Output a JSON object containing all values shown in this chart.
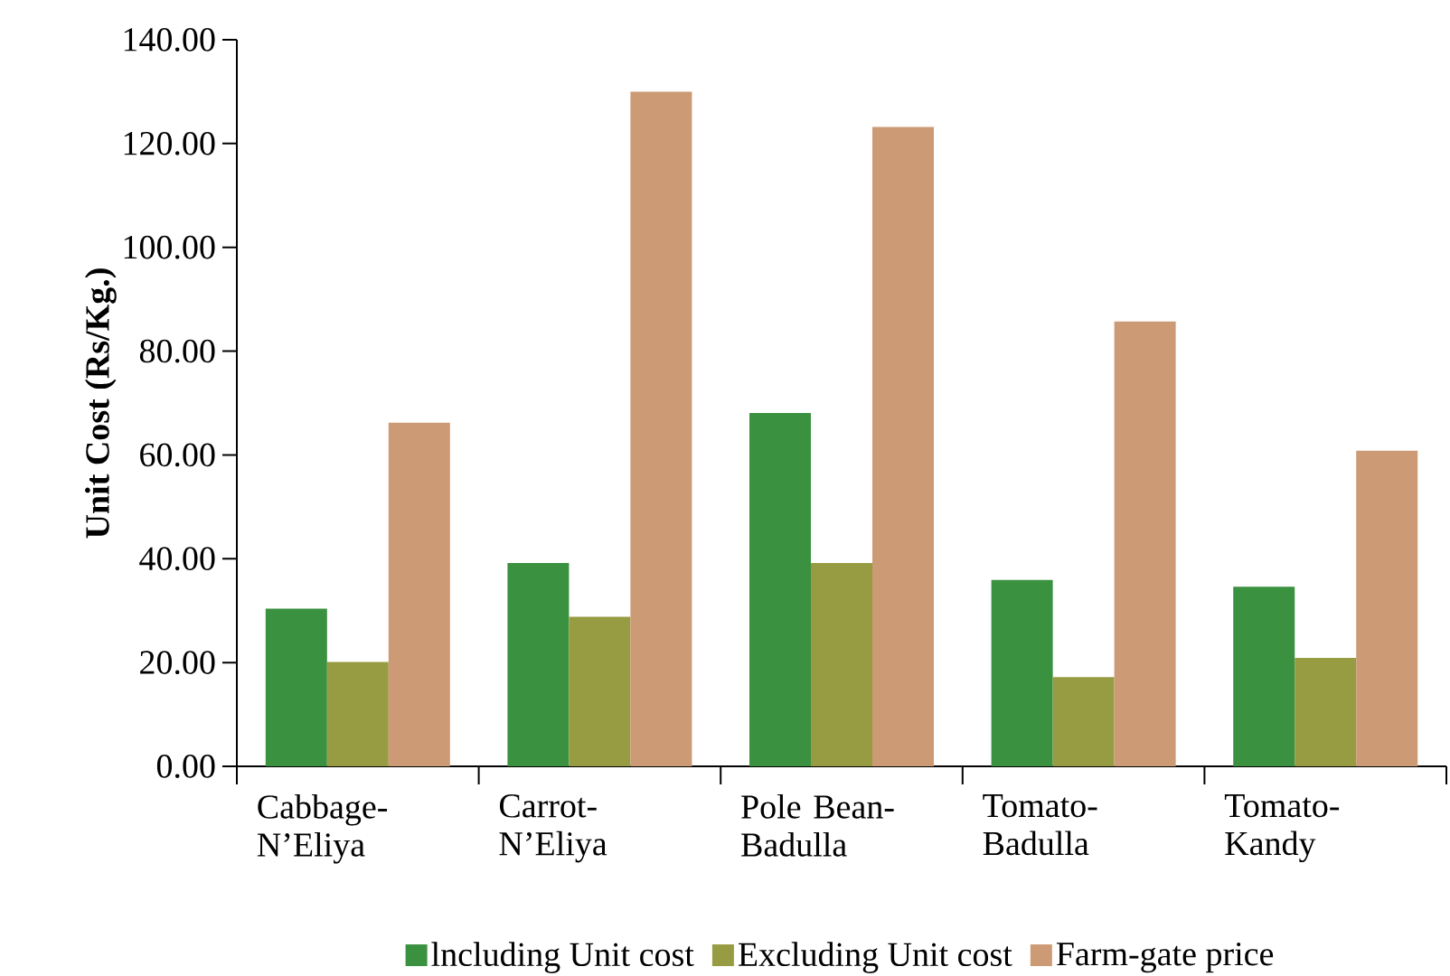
{
  "chart_data": {
    "type": "bar",
    "ylabel": "Unit Cost (Rs/Kg.)",
    "categories": [
      "Cabbage-N’Eliya",
      "Carrot-N’Eliya",
      "Pole Bean-Badulla",
      "Tomato-Badulla",
      "Tomato-Kandy"
    ],
    "series": [
      {
        "name": "lncluding Unit cost",
        "color": "#3a913f",
        "values": [
          30.4,
          39.2,
          68.1,
          35.9,
          34.6
        ]
      },
      {
        "name": "Excluding Unit cost",
        "color": "#979c42",
        "values": [
          20.1,
          28.8,
          39.2,
          17.2,
          20.9
        ]
      },
      {
        "name": "Farm-gate price",
        "color": "#cc9a74",
        "values": [
          66.2,
          130.0,
          123.2,
          85.7,
          60.8
        ]
      }
    ],
    "ylim": [
      0,
      140
    ],
    "yticks": [
      {
        "value": 0,
        "label": "0.00"
      },
      {
        "value": 20,
        "label": "20.00"
      },
      {
        "value": 40,
        "label": "40.00"
      },
      {
        "value": 60,
        "label": "60.00"
      },
      {
        "value": 80,
        "label": "80.00"
      },
      {
        "value": 100,
        "label": "100.00"
      },
      {
        "value": 120,
        "label": "120.00"
      },
      {
        "value": 140,
        "label": "140.00"
      }
    ],
    "grid": false,
    "legend": "bottom"
  }
}
